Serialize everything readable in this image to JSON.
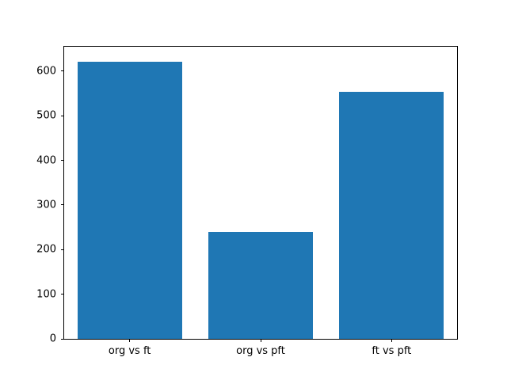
{
  "chart_data": {
    "type": "bar",
    "categories": [
      "org vs ft",
      "org vs pft",
      "ft vs pft"
    ],
    "values": [
      622,
      240,
      553
    ],
    "title": "",
    "xlabel": "",
    "ylabel": "",
    "ylim": [
      0,
      655
    ],
    "yticks": [
      0,
      100,
      200,
      300,
      400,
      500,
      600
    ],
    "bar_color": "#1f77b4",
    "bar_width_fraction": 0.8,
    "grid": false,
    "legend_position": "none",
    "background_color": "#ffffff",
    "spine_color": "#000000"
  }
}
